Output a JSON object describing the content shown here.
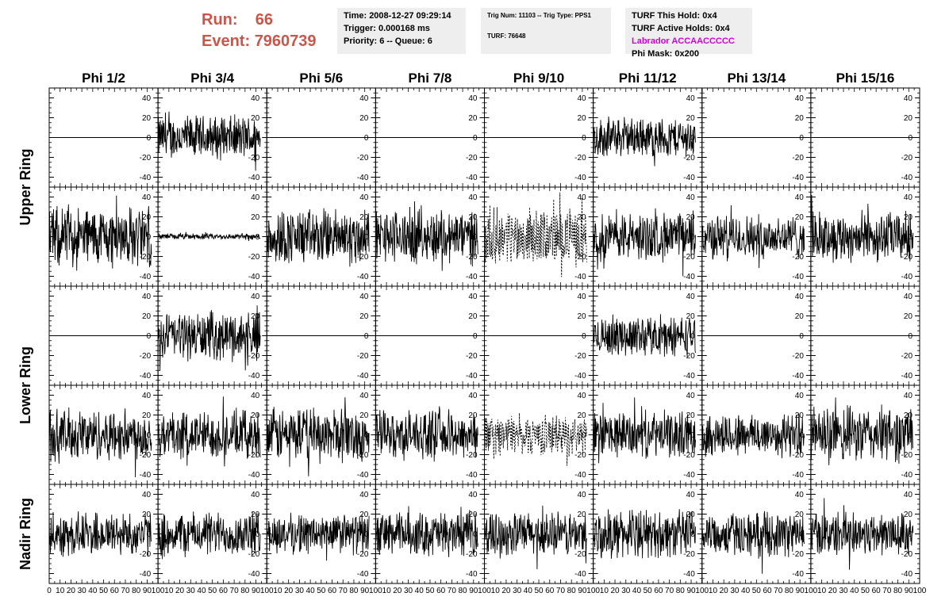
{
  "header": {
    "run_label": "Run:",
    "run_value": "66",
    "event_label": "Event:",
    "event_value": "7960739"
  },
  "info_time": {
    "time": "Time: 2008-12-27 09:29:14",
    "trigger": "Trigger: 0.000168 ms",
    "priority": "Priority: 6 -- Queue: 6"
  },
  "info_trig": {
    "trig_num": "Trig Num: 11103 -- Trig Type: PPS1",
    "turf": "TURF: 76648"
  },
  "info_turf": {
    "this_hold": "TURF This Hold: 0x4",
    "active_holds": "TURF Active Holds: 0x4",
    "labrador": "Labrador ACCAACCCCC",
    "phi_mask": "Phi Mask: 0x200"
  },
  "colors": {
    "run_text": "#c8564a",
    "labrador_text": "#d400d4",
    "box_bg": "#eeeeee",
    "trace": "#000000"
  },
  "chart_data": {
    "type": "line",
    "columns": [
      "Phi 1/2",
      "Phi 3/4",
      "Phi 5/6",
      "Phi 7/8",
      "Phi 9/10",
      "Phi 11/12",
      "Phi 13/14",
      "Phi 15/16"
    ],
    "row_labels": [
      "Upper Ring",
      "Lower Ring",
      "Nadir Ring"
    ],
    "xlim": [
      0,
      100
    ],
    "ylim": [
      -50,
      50
    ],
    "yticks": [
      -40,
      -20,
      0,
      20,
      40
    ],
    "x_tick_labels": [
      "0",
      "10",
      "20",
      "30",
      "40",
      "50",
      "60",
      "70",
      "80",
      "90",
      "100"
    ],
    "grid": false,
    "rows": [
      {
        "name": "Upper Ring A",
        "panels": [
          {
            "type": "flat"
          },
          {
            "type": "noise",
            "amp": 22
          },
          {
            "type": "flat"
          },
          {
            "type": "flat"
          },
          {
            "type": "flat"
          },
          {
            "type": "noise",
            "amp": 20
          },
          {
            "type": "flat"
          },
          {
            "type": "flat"
          }
        ]
      },
      {
        "name": "Upper Ring B",
        "panels": [
          {
            "type": "noise",
            "amp": 30
          },
          {
            "type": "noise",
            "amp": 3
          },
          {
            "type": "noise",
            "amp": 28
          },
          {
            "type": "noise",
            "amp": 27
          },
          {
            "type": "dashed",
            "amp": 28
          },
          {
            "type": "noise",
            "amp": 24
          },
          {
            "type": "noise",
            "amp": 22
          },
          {
            "type": "noise",
            "amp": 25
          }
        ]
      },
      {
        "name": "Lower Ring A",
        "panels": [
          {
            "type": "flat"
          },
          {
            "type": "noise",
            "amp": 24
          },
          {
            "type": "flat"
          },
          {
            "type": "flat"
          },
          {
            "type": "flat"
          },
          {
            "type": "noise",
            "amp": 20
          },
          {
            "type": "flat"
          },
          {
            "type": "flat"
          }
        ]
      },
      {
        "name": "Lower Ring B",
        "panels": [
          {
            "type": "noise",
            "amp": 26
          },
          {
            "type": "noise",
            "amp": 24
          },
          {
            "type": "noise",
            "amp": 27
          },
          {
            "type": "noise",
            "amp": 24
          },
          {
            "type": "dashed",
            "amp": 20
          },
          {
            "type": "noise",
            "amp": 23
          },
          {
            "type": "noise",
            "amp": 22
          },
          {
            "type": "noise",
            "amp": 28
          }
        ]
      },
      {
        "name": "Nadir Ring",
        "panels": [
          {
            "type": "noise",
            "amp": 22
          },
          {
            "type": "noise",
            "amp": 22
          },
          {
            "type": "noise",
            "amp": 20
          },
          {
            "type": "noise",
            "amp": 22
          },
          {
            "type": "noise",
            "amp": 22
          },
          {
            "type": "noise",
            "amp": 24
          },
          {
            "type": "noise",
            "amp": 22
          },
          {
            "type": "noise",
            "amp": 22
          }
        ]
      }
    ]
  }
}
